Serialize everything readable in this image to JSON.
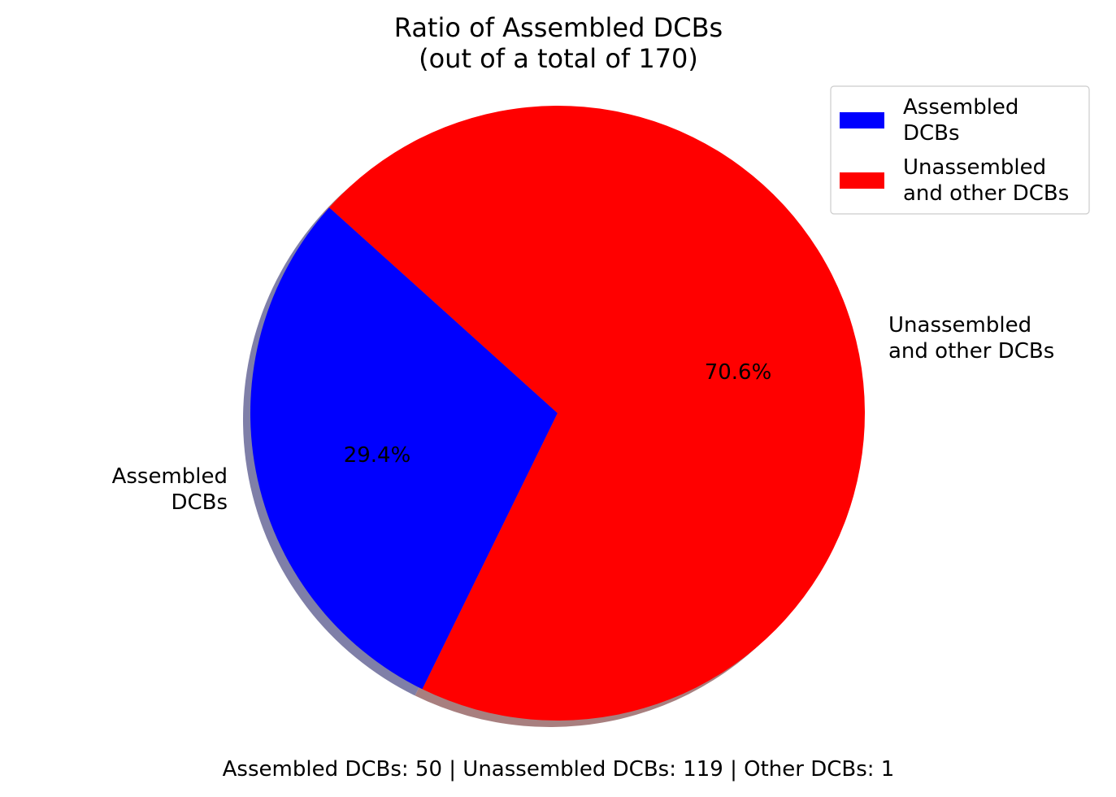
{
  "chart_data": {
    "type": "pie",
    "title_line1": "Ratio of Assembled DCBs",
    "title_line2": "(out of a total of 170)",
    "slices": [
      {
        "label_line1": "Assembled",
        "label_line2": "DCBs",
        "value": 50,
        "pct_label": "29.4%",
        "color": "#0000ff",
        "shadow_color": "#7f7fa8"
      },
      {
        "label_line1": "Unassembled",
        "label_line2": "and other DCBs",
        "value": 120,
        "pct_label": "70.6%",
        "color": "#ff0000",
        "shadow_color": "#a87f7f"
      }
    ],
    "total": 170,
    "start_angle_deg": 138,
    "direction": "counterclockwise",
    "shadow": true,
    "legend": {
      "position": "top-right",
      "entries": [
        {
          "line1": "Assembled",
          "line2": "DCBs",
          "color": "#0000ff"
        },
        {
          "line1": "Unassembled",
          "line2": "and other DCBs",
          "color": "#ff0000"
        }
      ]
    },
    "footer": "Assembled DCBs: 50 | Unassembled DCBs: 119 | Other DCBs: 1"
  }
}
